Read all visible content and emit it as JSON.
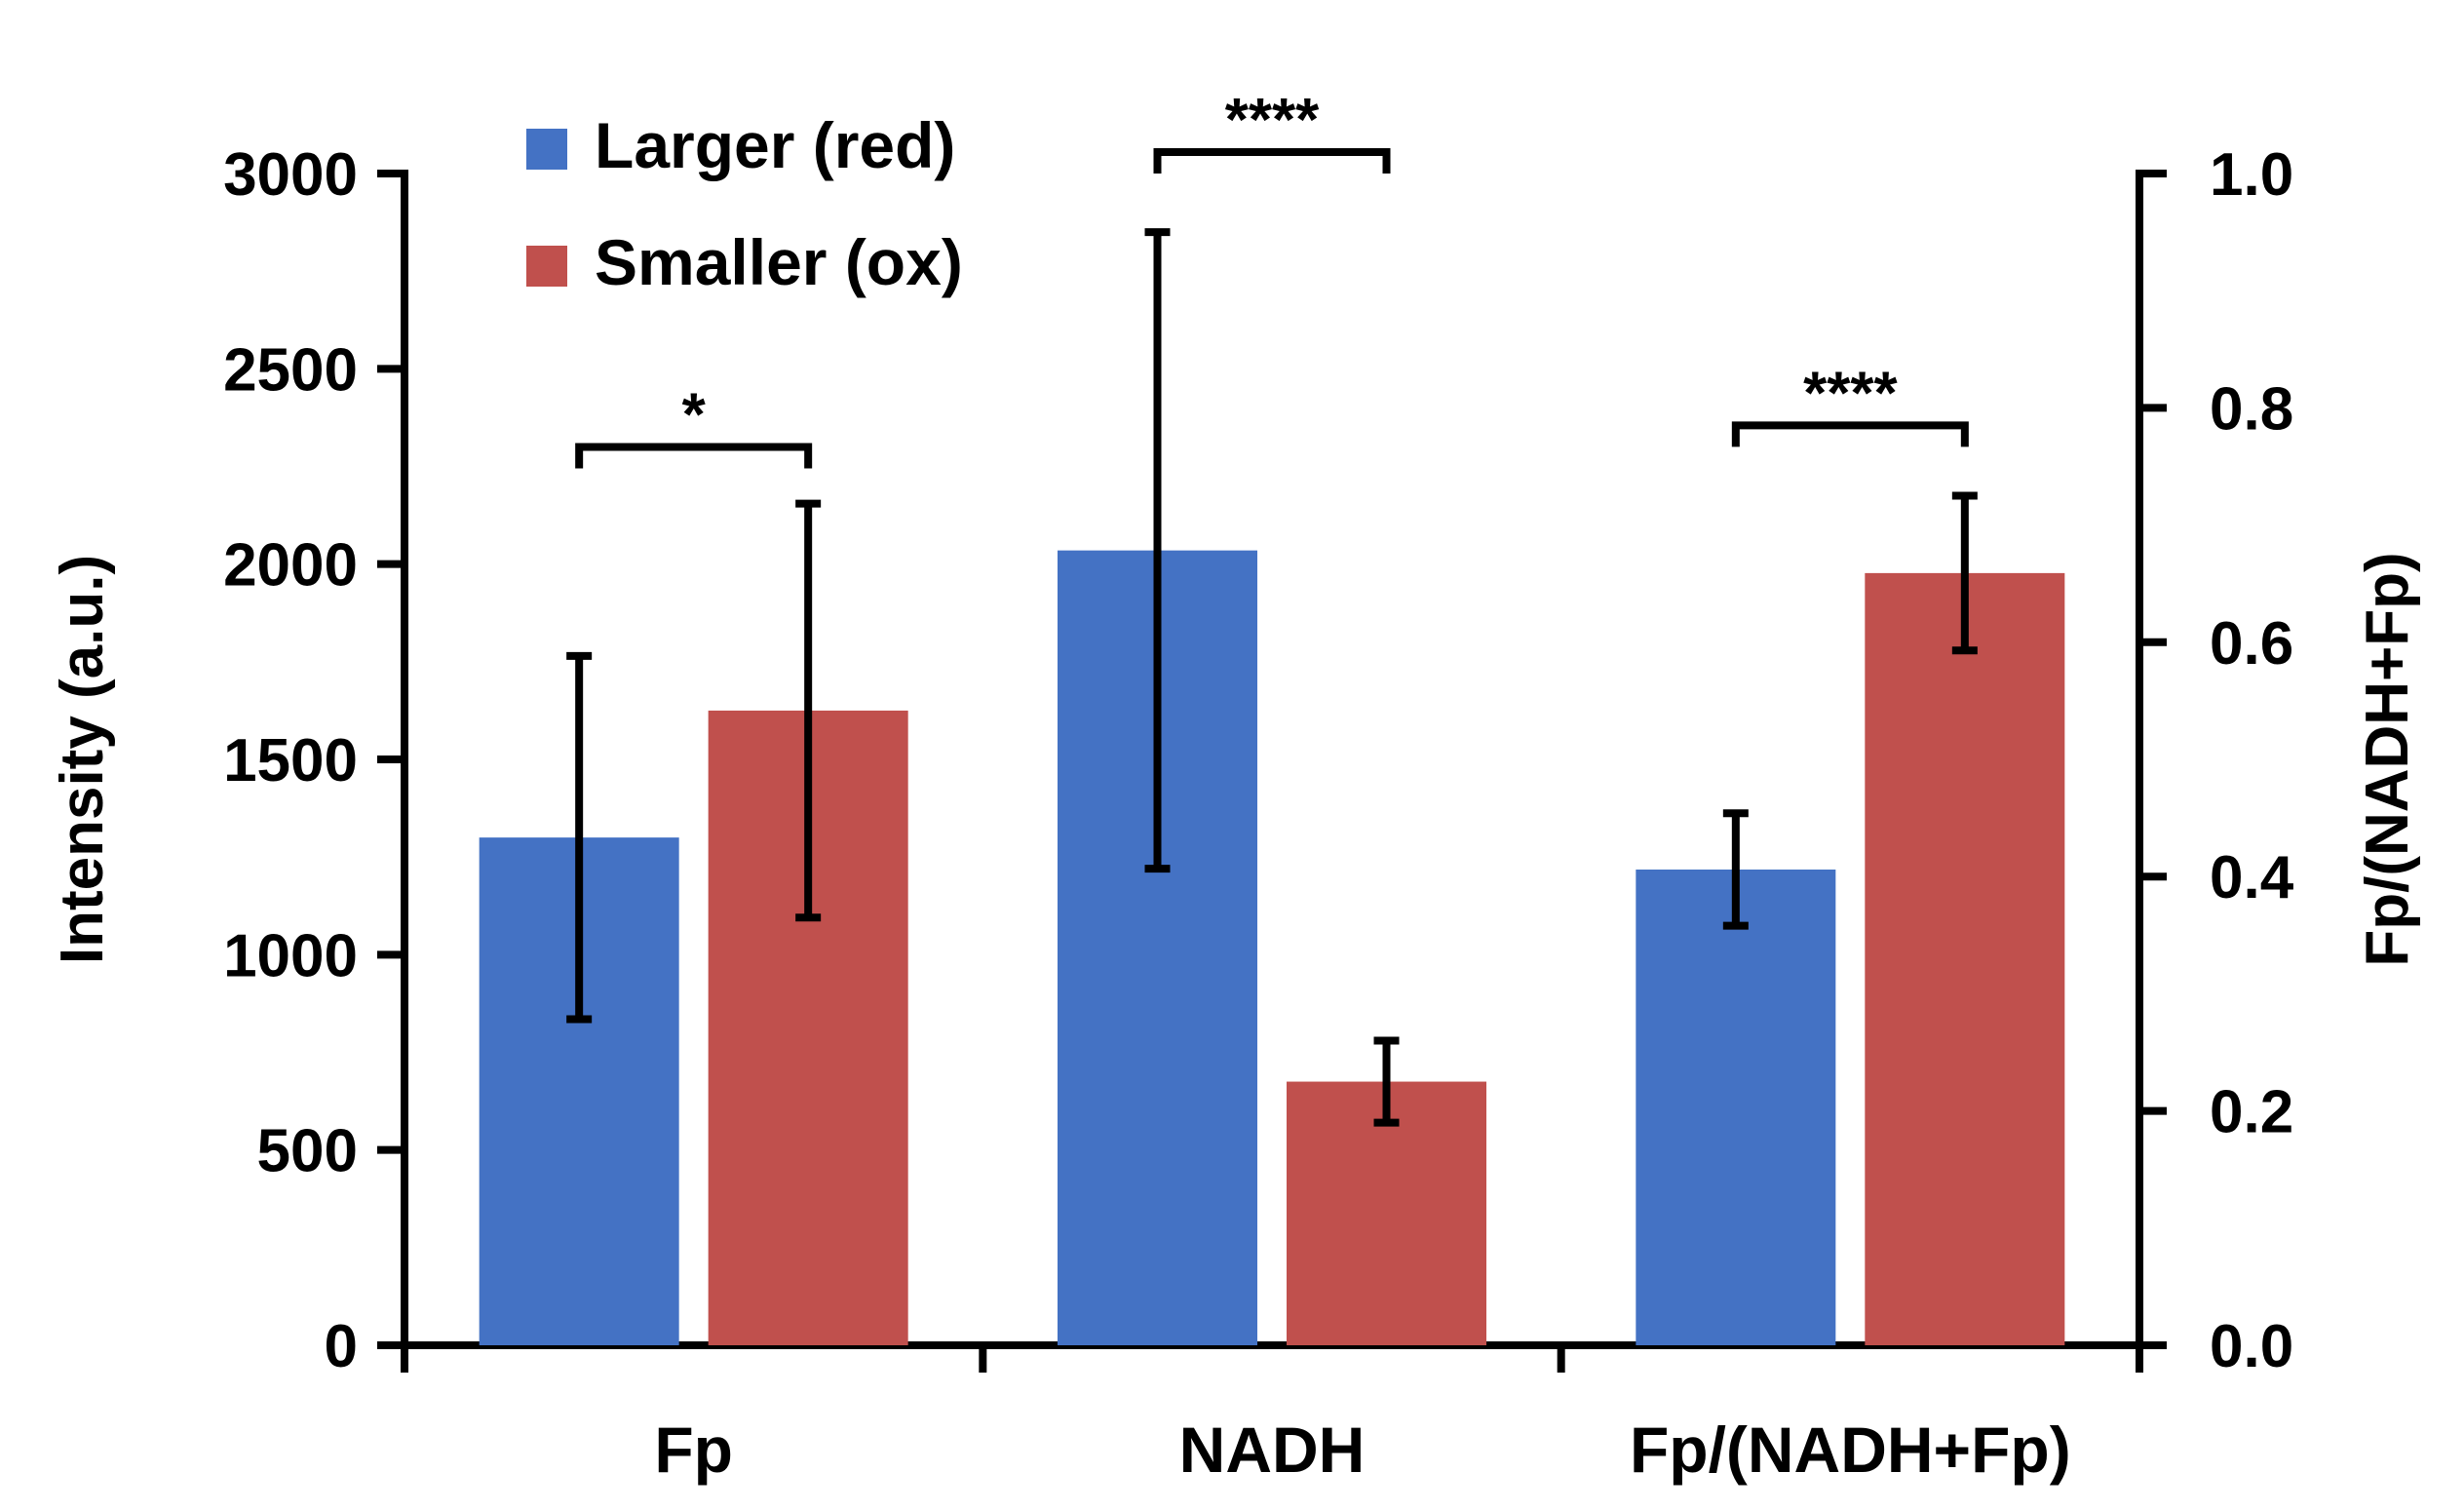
{
  "chart_data": {
    "type": "bar",
    "categories": [
      "Fp",
      "NADH",
      "Fp/(NADH+Fp)"
    ],
    "series": [
      {
        "name": "Larger (red)",
        "color": "#4472C4",
        "values": [
          1300,
          2035,
          0.406
        ],
        "errors": [
          465,
          815,
          0.048
        ]
      },
      {
        "name": "Smaller (ox)",
        "color": "#C0504D",
        "values": [
          1625,
          675,
          0.659
        ],
        "errors": [
          530,
          105,
          0.066
        ]
      }
    ],
    "axis_mapping": [
      "left",
      "left",
      "right"
    ],
    "left_axis": {
      "label": "Intensity (a.u.)",
      "ylim": [
        0,
        3000
      ],
      "ticks": [
        0,
        500,
        1000,
        1500,
        2000,
        2500,
        3000
      ],
      "tick_labels": [
        "0",
        "500",
        "1000",
        "1500",
        "2000",
        "2500",
        "3000"
      ]
    },
    "right_axis": {
      "label": "Fp/(NADH+Fp)",
      "ylim": [
        0,
        1.0
      ],
      "ticks": [
        0,
        0.2,
        0.4,
        0.6,
        0.8,
        1.0
      ],
      "tick_labels": [
        "0.0",
        "0.2",
        "0.4",
        "0.6",
        "0.8",
        "1.0"
      ]
    },
    "significance": [
      {
        "category": 0,
        "label": "*",
        "bracket_y": 2300
      },
      {
        "category": 1,
        "label": "****",
        "bracket_y": 3055
      },
      {
        "category": 2,
        "label": "****",
        "bracket_y": 0.785
      }
    ],
    "legend_position": "top-left"
  }
}
